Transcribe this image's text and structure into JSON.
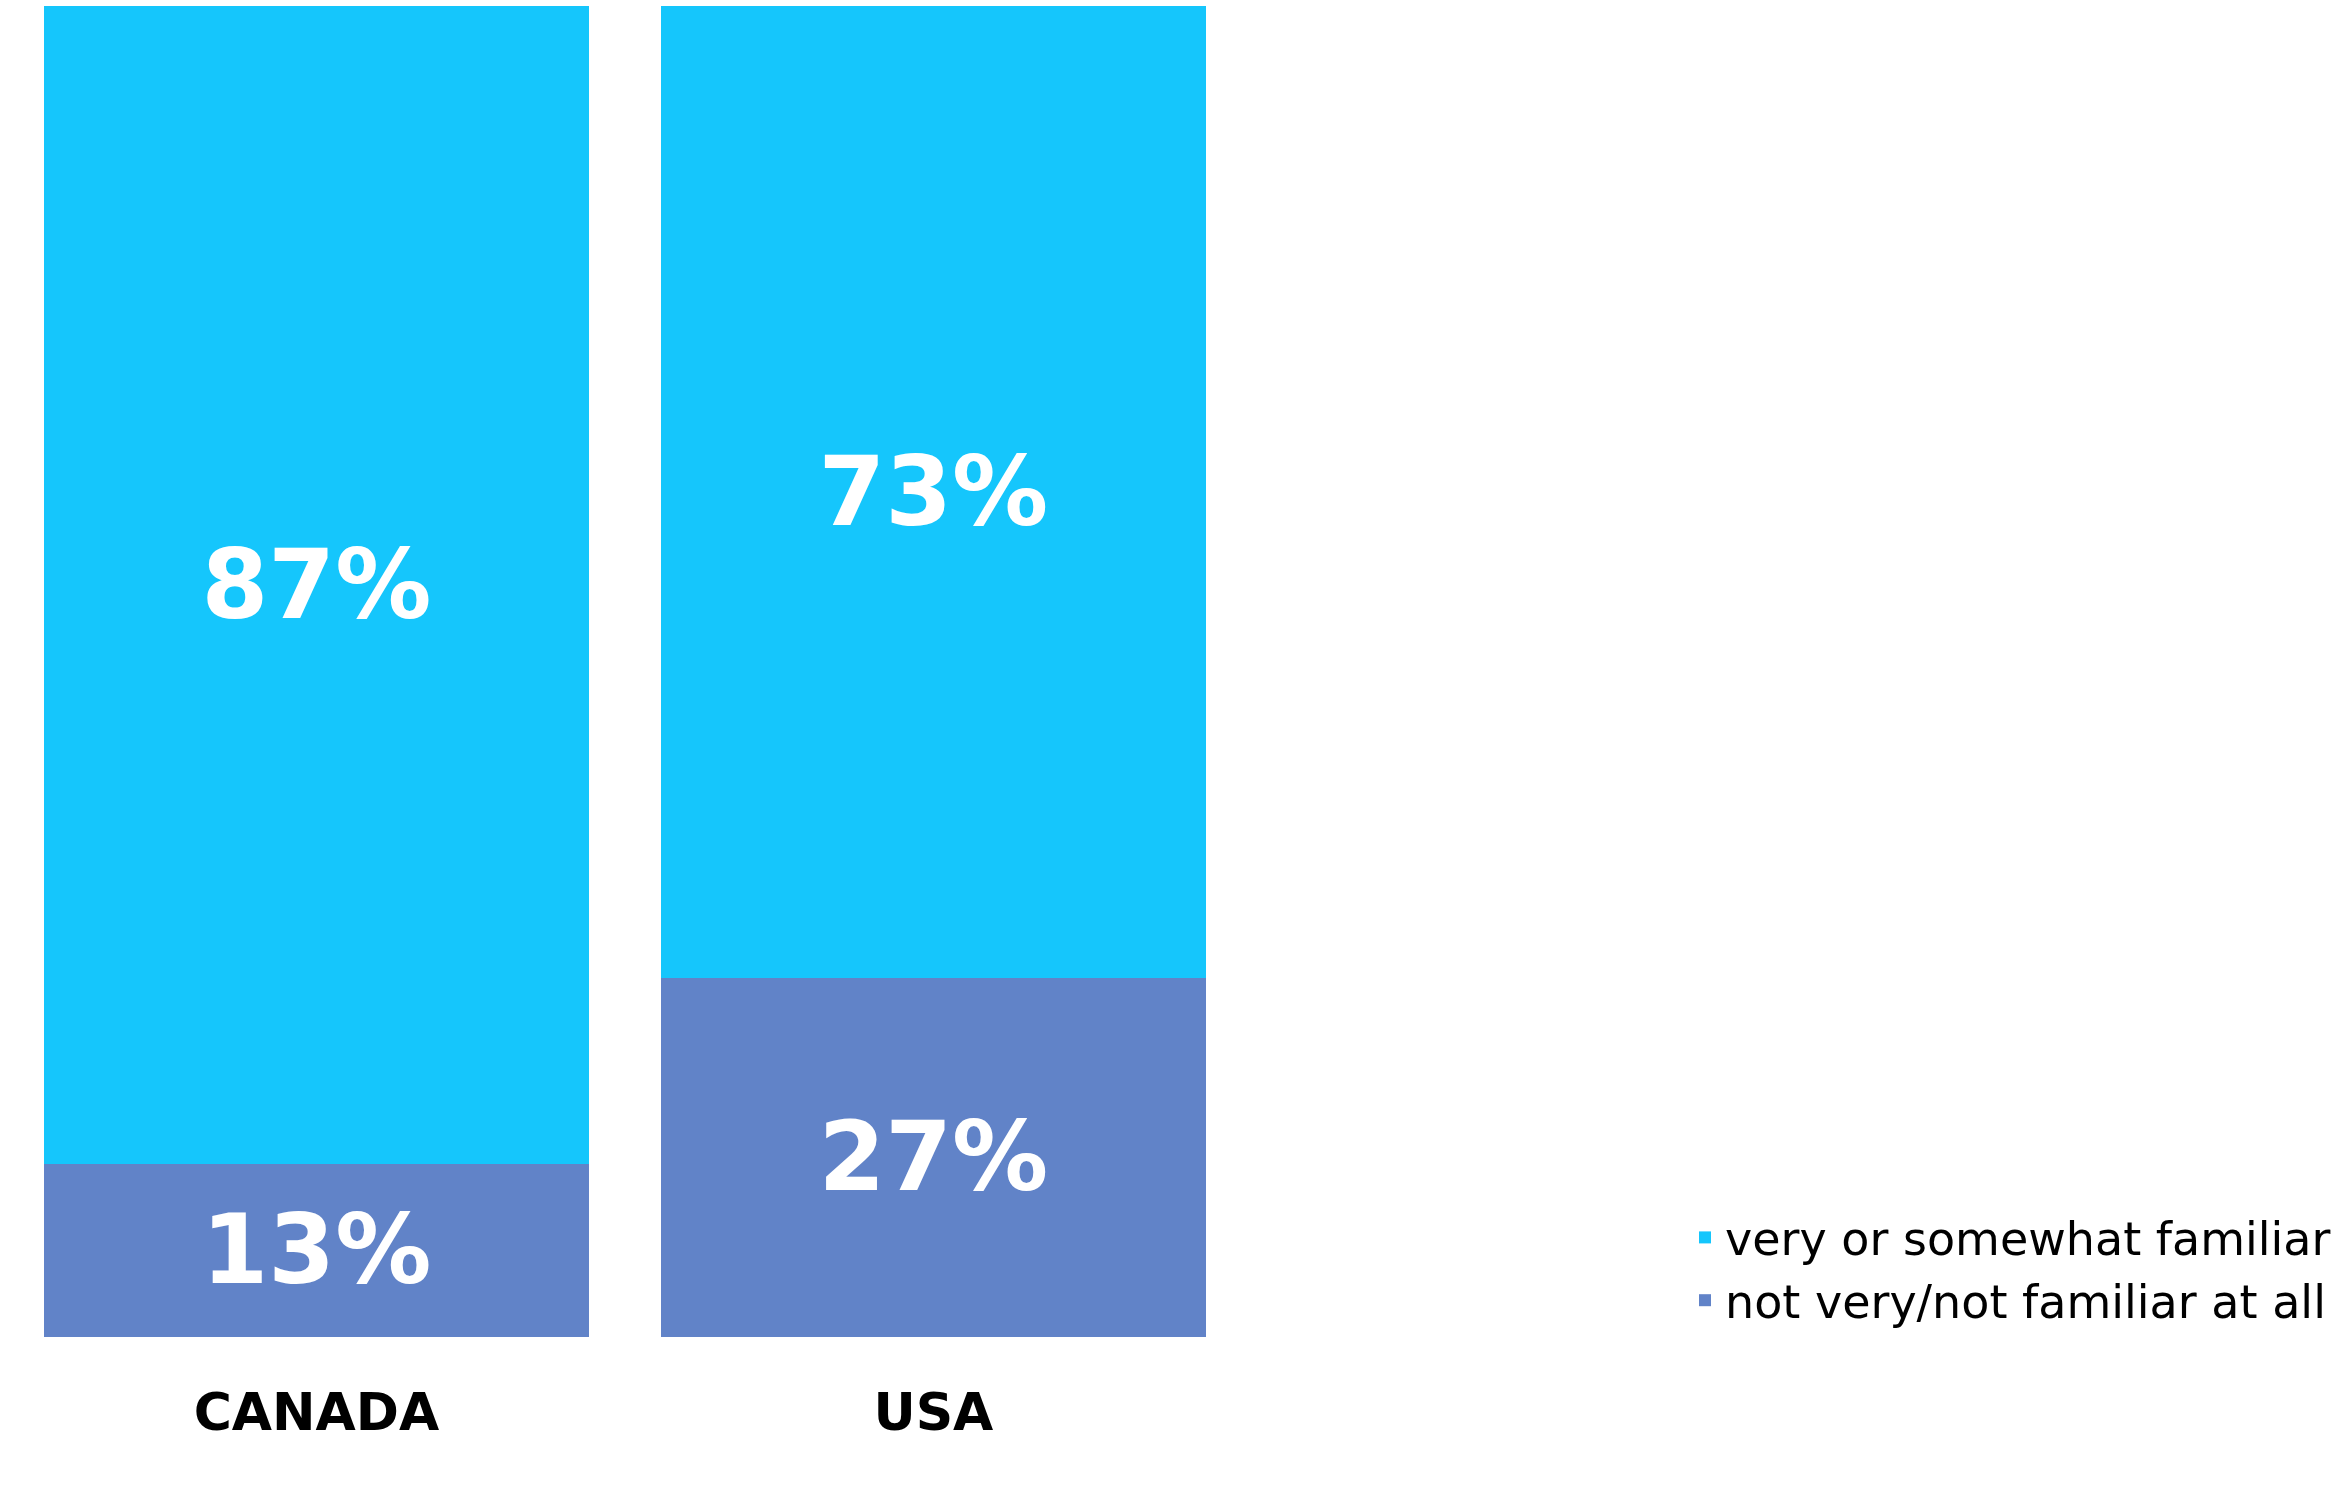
{
  "chart_data": {
    "type": "bar",
    "stacked": true,
    "categories": [
      "CANADA",
      "USA"
    ],
    "series": [
      {
        "name": "not very/not familiar at all",
        "color": "#6183c8",
        "values": [
          13,
          27
        ],
        "value_labels": [
          "13%",
          "27%"
        ]
      },
      {
        "name": "very or somewhat familiar",
        "color": "#15c6fc",
        "values": [
          87,
          73
        ],
        "value_labels": [
          "87%",
          "73%"
        ]
      }
    ],
    "ylim": [
      0,
      100
    ],
    "tick_labels": "x",
    "legend": "bottom right"
  }
}
